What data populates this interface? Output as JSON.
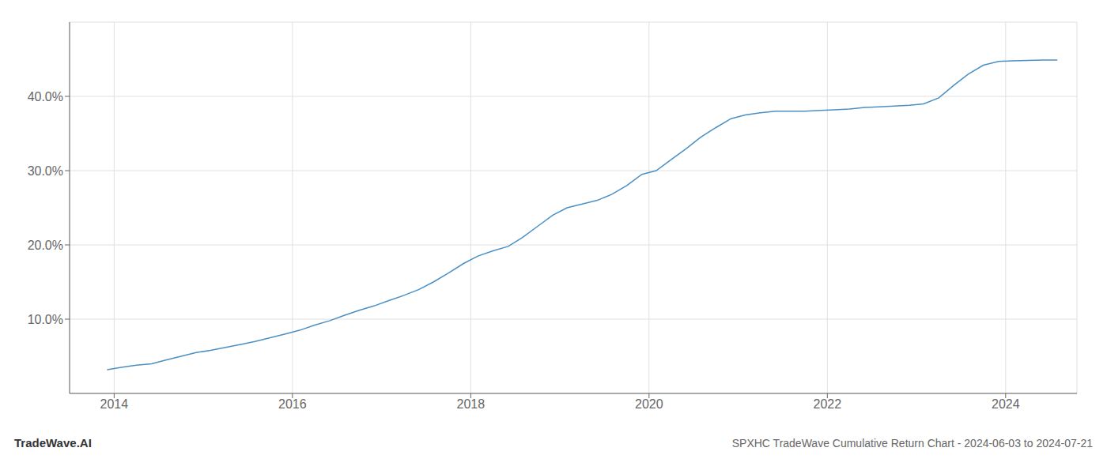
{
  "chart_data": {
    "type": "line",
    "title": "SPXHC TradeWave Cumulative Return Chart - 2024-06-03 to 2024-07-21",
    "annotations": [
      "TradeWave.AI"
    ],
    "color": "#4a90c4",
    "x": [
      2013.92,
      2014.08,
      2014.25,
      2014.42,
      2014.58,
      2014.75,
      2014.92,
      2015.08,
      2015.25,
      2015.42,
      2015.58,
      2015.75,
      2015.92,
      2016.08,
      2016.25,
      2016.42,
      2016.58,
      2016.75,
      2016.92,
      2017.08,
      2017.25,
      2017.42,
      2017.58,
      2017.75,
      2017.92,
      2018.08,
      2018.25,
      2018.42,
      2018.58,
      2018.75,
      2018.92,
      2019.08,
      2019.25,
      2019.42,
      2019.58,
      2019.75,
      2019.92,
      2020.08,
      2020.25,
      2020.42,
      2020.58,
      2020.75,
      2020.92,
      2021.08,
      2021.25,
      2021.42,
      2021.58,
      2021.75,
      2021.92,
      2022.08,
      2022.25,
      2022.42,
      2022.58,
      2022.75,
      2022.92,
      2023.08,
      2023.25,
      2023.42,
      2023.58,
      2023.75,
      2023.92,
      2024.08,
      2024.25,
      2024.42,
      2024.58
    ],
    "values": [
      3.2,
      3.5,
      3.8,
      4.0,
      4.5,
      5.0,
      5.5,
      5.8,
      6.2,
      6.6,
      7.0,
      7.5,
      8.0,
      8.5,
      9.2,
      9.8,
      10.5,
      11.2,
      11.8,
      12.5,
      13.2,
      14.0,
      15.0,
      16.2,
      17.5,
      18.5,
      19.2,
      19.8,
      21.0,
      22.5,
      24.0,
      25.0,
      25.5,
      26.0,
      26.8,
      28.0,
      29.5,
      30.0,
      31.5,
      33.0,
      34.5,
      35.8,
      37.0,
      37.5,
      37.8,
      38.0,
      38.0,
      38.0,
      38.1,
      38.2,
      38.3,
      38.5,
      38.6,
      38.7,
      38.8,
      39.0,
      39.8,
      41.5,
      43.0,
      44.2,
      44.7,
      44.8,
      44.85,
      44.9,
      44.9
    ],
    "xlim": [
      2013.5,
      2024.8
    ],
    "ylim": [
      0,
      50
    ],
    "xticks": [
      2014,
      2016,
      2018,
      2020,
      2022,
      2024
    ],
    "yticks": [
      {
        "value": 10.0,
        "label": "10.0%"
      },
      {
        "value": 20.0,
        "label": "20.0%"
      },
      {
        "value": 30.0,
        "label": "30.0%"
      },
      {
        "value": 40.0,
        "label": "40.0%"
      }
    ],
    "grid": true
  }
}
